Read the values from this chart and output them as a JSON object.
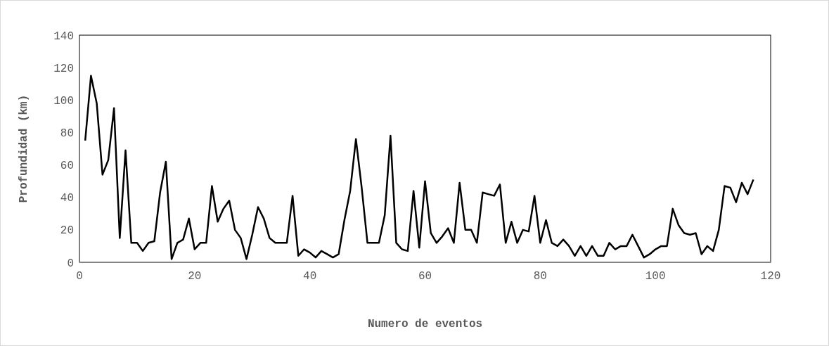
{
  "chart_data": {
    "type": "line",
    "xlabel": "Numero de eventos",
    "ylabel": "Profundidad (km)",
    "x": [
      1,
      2,
      3,
      4,
      5,
      6,
      7,
      8,
      9,
      10,
      11,
      12,
      13,
      14,
      15,
      16,
      17,
      18,
      19,
      20,
      21,
      22,
      23,
      24,
      25,
      26,
      27,
      28,
      29,
      30,
      31,
      32,
      33,
      34,
      35,
      36,
      37,
      38,
      39,
      40,
      41,
      42,
      43,
      44,
      45,
      46,
      47,
      48,
      49,
      50,
      51,
      52,
      53,
      54,
      55,
      56,
      57,
      58,
      59,
      60,
      61,
      62,
      63,
      64,
      65,
      66,
      67,
      68,
      69,
      70,
      71,
      72,
      73,
      74,
      75,
      76,
      77,
      78,
      79,
      80,
      81,
      82,
      83,
      84,
      85,
      86,
      87,
      88,
      89,
      90,
      91,
      92,
      93,
      94,
      95,
      96,
      97,
      98,
      99,
      100,
      101,
      102,
      103,
      104,
      105,
      106,
      107,
      108,
      109,
      110,
      111,
      112,
      113,
      114,
      115,
      116,
      117
    ],
    "series": [
      {
        "color": "#000000",
        "values": [
          75,
          115,
          98,
          54,
          63,
          95,
          15,
          69,
          12,
          12,
          7,
          12,
          13,
          43,
          62,
          2,
          12,
          14,
          27,
          8,
          12,
          12,
          47,
          25,
          33,
          38,
          20,
          15,
          2,
          17,
          34,
          27,
          15,
          12,
          12,
          12,
          41,
          4,
          8,
          6,
          3,
          7,
          5,
          3,
          5,
          26,
          44,
          76,
          46,
          12,
          12,
          12,
          29,
          78,
          12,
          8,
          7,
          44,
          9,
          50,
          18,
          12,
          16,
          21,
          12,
          49,
          20,
          20,
          12,
          43,
          42,
          41,
          48,
          12,
          25,
          12,
          20,
          19,
          41,
          12,
          26,
          12,
          10,
          14,
          10,
          4,
          10,
          4,
          10,
          4,
          4,
          12,
          8,
          10,
          10,
          17,
          10,
          3,
          5,
          8,
          10,
          10,
          33,
          23,
          18,
          17,
          18,
          5,
          10,
          7,
          20,
          47,
          46,
          37,
          49,
          42,
          51
        ]
      }
    ],
    "xlim": [
      0,
      120
    ],
    "xticks": [
      0,
      20,
      40,
      60,
      80,
      100,
      120
    ],
    "ylim": [
      0,
      140
    ],
    "yticks": [
      0,
      20,
      40,
      60,
      80,
      100,
      120,
      140
    ],
    "marker": "none",
    "line_style": "solid"
  }
}
